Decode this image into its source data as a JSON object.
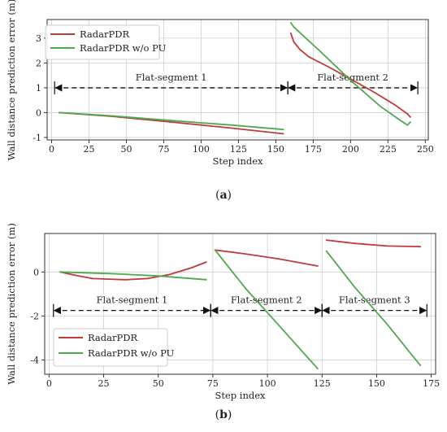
{
  "colors": {
    "radarpdr": "#c0393b",
    "radarpdr_wo_pu": "#4daa4d",
    "grid": "#cfcfcf",
    "arrow": "#111111"
  },
  "chart_data": [
    {
      "id": "a",
      "type": "line",
      "caption_letter": "a",
      "xlabel": "Step index",
      "ylabel": "Wall distance prediction error (m)",
      "xlim": [
        -3,
        252
      ],
      "ylim": [
        -1.1,
        3.75
      ],
      "xticks": [
        0,
        25,
        50,
        75,
        100,
        125,
        150,
        175,
        200,
        225,
        250
      ],
      "yticks": [
        -1,
        0,
        1,
        2,
        3
      ],
      "grid": true,
      "legend": {
        "position": "top-left",
        "entries": [
          "RadarPDR",
          "RadarPDR w/o PU"
        ]
      },
      "series": [
        {
          "name": "RadarPDR",
          "color_key": "radarpdr",
          "segments": [
            [
              [
                5,
                0
              ],
              [
                40,
                -0.15
              ],
              [
                80,
                -0.38
              ],
              [
                120,
                -0.62
              ],
              [
                155,
                -0.85
              ]
            ],
            [
              [
                160,
                3.2
              ],
              [
                162,
                2.85
              ],
              [
                166,
                2.55
              ],
              [
                172,
                2.25
              ],
              [
                185,
                1.85
              ],
              [
                200,
                1.35
              ],
              [
                215,
                0.85
              ],
              [
                230,
                0.3
              ],
              [
                238,
                -0.05
              ],
              [
                240,
                -0.18
              ]
            ]
          ]
        },
        {
          "name": "RadarPDR w/o PU",
          "color_key": "radarpdr_wo_pu",
          "segments": [
            [
              [
                5,
                0
              ],
              [
                40,
                -0.13
              ],
              [
                80,
                -0.32
              ],
              [
                120,
                -0.5
              ],
              [
                155,
                -0.68
              ]
            ],
            [
              [
                160,
                3.62
              ],
              [
                162,
                3.45
              ],
              [
                180,
                2.45
              ],
              [
                200,
                1.3
              ],
              [
                220,
                0.25
              ],
              [
                233,
                -0.3
              ],
              [
                238,
                -0.5
              ],
              [
                240,
                -0.38
              ]
            ]
          ]
        }
      ],
      "annotations": [
        {
          "label": "Flat-segment 1",
          "x_start": 2,
          "x_end": 158,
          "y": 1.0
        },
        {
          "label": "Flat-segment 2",
          "x_start": 158,
          "x_end": 245,
          "y": 1.0
        }
      ]
    },
    {
      "id": "b",
      "type": "line",
      "caption_letter": "b",
      "xlabel": "Step index",
      "ylabel": "Wall distance prediction error (m)",
      "xlim": [
        -2,
        177
      ],
      "ylim": [
        -4.65,
        1.75
      ],
      "xticks": [
        0,
        25,
        50,
        75,
        100,
        125,
        150,
        175
      ],
      "yticks": [
        -4,
        -2,
        0
      ],
      "grid": true,
      "legend": {
        "position": "bottom-left",
        "entries": [
          "RadarPDR",
          "RadarPDR w/o PU"
        ]
      },
      "series": [
        {
          "name": "RadarPDR",
          "color_key": "radarpdr",
          "segments": [
            [
              [
                5,
                0
              ],
              [
                12,
                -0.15
              ],
              [
                20,
                -0.3
              ],
              [
                35,
                -0.35
              ],
              [
                45,
                -0.3
              ],
              [
                55,
                -0.12
              ],
              [
                65,
                0.18
              ],
              [
                72,
                0.45
              ]
            ],
            [
              [
                76,
                1.0
              ],
              [
                90,
                0.82
              ],
              [
                105,
                0.6
              ],
              [
                123,
                0.27
              ]
            ],
            [
              [
                127,
                1.45
              ],
              [
                140,
                1.3
              ],
              [
                155,
                1.18
              ],
              [
                170,
                1.15
              ]
            ]
          ]
        },
        {
          "name": "RadarPDR w/o PU",
          "color_key": "radarpdr_wo_pu",
          "segments": [
            [
              [
                5,
                0
              ],
              [
                30,
                -0.08
              ],
              [
                50,
                -0.18
              ],
              [
                72,
                -0.35
              ]
            ],
            [
              [
                76,
                1.0
              ],
              [
                90,
                -0.75
              ],
              [
                105,
                -2.4
              ],
              [
                123,
                -4.4
              ]
            ],
            [
              [
                127,
                0.95
              ],
              [
                140,
                -0.7
              ],
              [
                155,
                -2.4
              ],
              [
                170,
                -4.25
              ]
            ]
          ]
        }
      ],
      "annotations": [
        {
          "label": "Flat-segment 1",
          "x_start": 2,
          "x_end": 74,
          "y": -1.75
        },
        {
          "label": "Flat-segment 2",
          "x_start": 74,
          "x_end": 125,
          "y": -1.75
        },
        {
          "label": "Flat-segment 3",
          "x_start": 125,
          "x_end": 173,
          "y": -1.75
        }
      ]
    }
  ]
}
